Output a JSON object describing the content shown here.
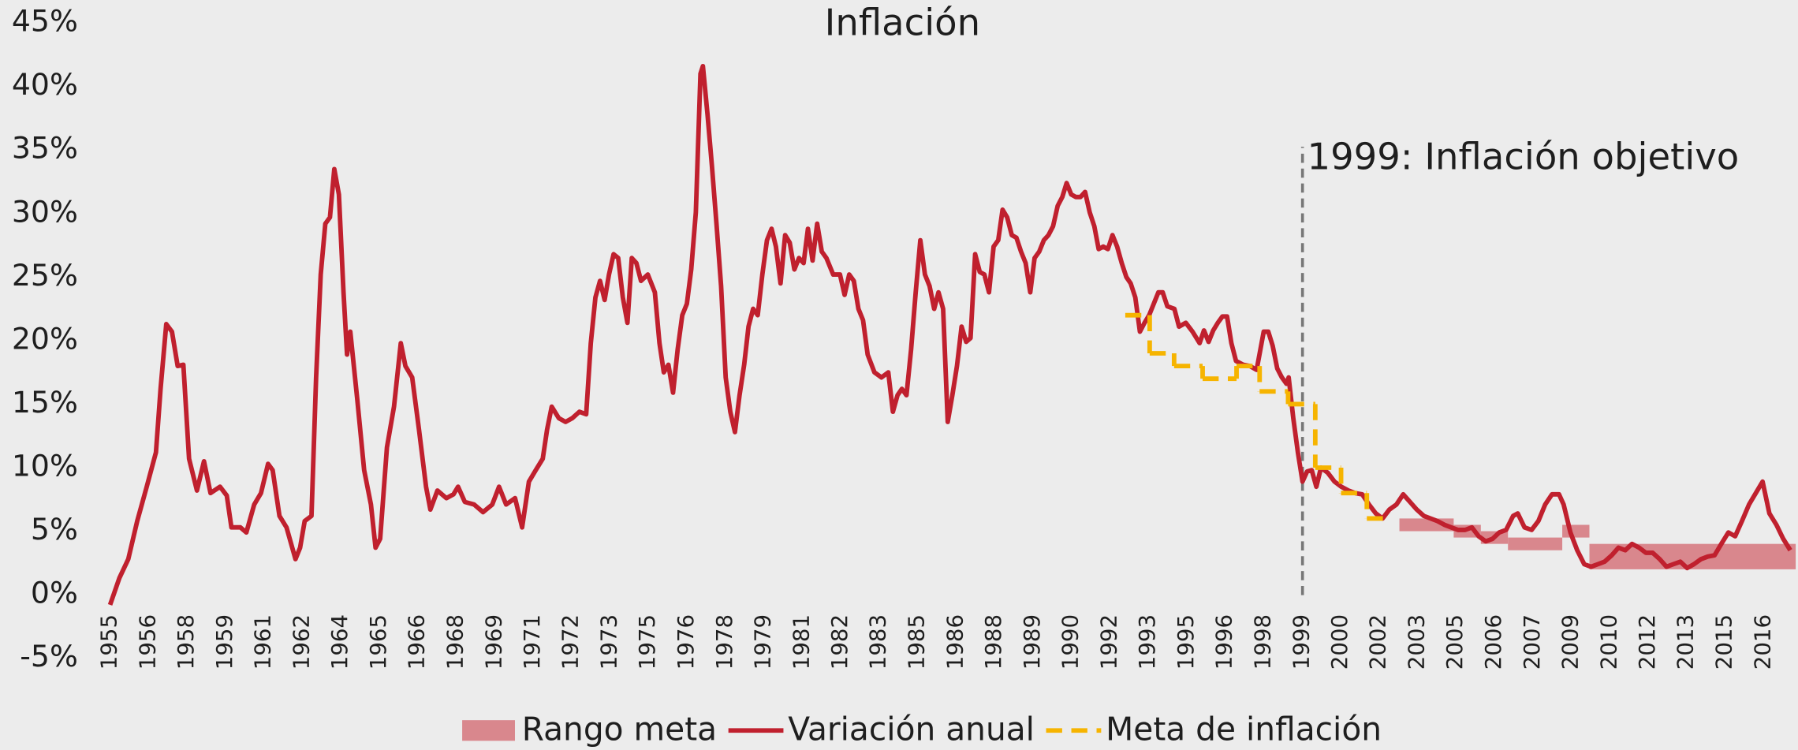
{
  "chart_data": {
    "type": "line",
    "title": "Inflación",
    "xlim": [
      1955.5,
      2017.6
    ],
    "ylim": [
      -5,
      45
    ],
    "grid": false,
    "legend": "bottom",
    "xticks": [
      {
        "value": 1955.5,
        "label": "1955"
      },
      {
        "value": 1956.92,
        "label": "1956"
      },
      {
        "value": 1958.33,
        "label": "1958"
      },
      {
        "value": 1959.75,
        "label": "1959"
      },
      {
        "value": 1961.17,
        "label": "1961"
      },
      {
        "value": 1962.58,
        "label": "1962"
      },
      {
        "value": 1964.0,
        "label": "1964"
      },
      {
        "value": 1965.42,
        "label": "1965"
      },
      {
        "value": 1966.83,
        "label": "1966"
      },
      {
        "value": 1968.25,
        "label": "1968"
      },
      {
        "value": 1969.67,
        "label": "1969"
      },
      {
        "value": 1971.08,
        "label": "1971"
      },
      {
        "value": 1972.5,
        "label": "1972"
      },
      {
        "value": 1973.92,
        "label": "1973"
      },
      {
        "value": 1975.33,
        "label": "1975"
      },
      {
        "value": 1976.75,
        "label": "1976"
      },
      {
        "value": 1978.17,
        "label": "1978"
      },
      {
        "value": 1979.58,
        "label": "1979"
      },
      {
        "value": 1981.0,
        "label": "1981"
      },
      {
        "value": 1982.42,
        "label": "1982"
      },
      {
        "value": 1983.83,
        "label": "1983"
      },
      {
        "value": 1985.25,
        "label": "1985"
      },
      {
        "value": 1986.67,
        "label": "1986"
      },
      {
        "value": 1988.08,
        "label": "1988"
      },
      {
        "value": 1989.5,
        "label": "1989"
      },
      {
        "value": 1990.92,
        "label": "1990"
      },
      {
        "value": 1992.33,
        "label": "1992"
      },
      {
        "value": 1993.75,
        "label": "1993"
      },
      {
        "value": 1995.17,
        "label": "1995"
      },
      {
        "value": 1996.58,
        "label": "1996"
      },
      {
        "value": 1998.0,
        "label": "1998"
      },
      {
        "value": 1999.42,
        "label": "1999"
      },
      {
        "value": 2000.83,
        "label": "2000"
      },
      {
        "value": 2002.25,
        "label": "2002"
      },
      {
        "value": 2003.67,
        "label": "2003"
      },
      {
        "value": 2005.08,
        "label": "2005"
      },
      {
        "value": 2006.5,
        "label": "2006"
      },
      {
        "value": 2007.92,
        "label": "2007"
      },
      {
        "value": 2009.33,
        "label": "2009"
      },
      {
        "value": 2010.75,
        "label": "2010"
      },
      {
        "value": 2012.17,
        "label": "2012"
      },
      {
        "value": 2013.58,
        "label": "2013"
      },
      {
        "value": 2015.0,
        "label": "2015"
      },
      {
        "value": 2016.42,
        "label": "2016"
      }
    ],
    "yticks": [
      {
        "value": -5,
        "label": "-5%"
      },
      {
        "value": 0,
        "label": "0%"
      },
      {
        "value": 5,
        "label": "5%"
      },
      {
        "value": 10,
        "label": "10%"
      },
      {
        "value": 15,
        "label": "15%"
      },
      {
        "value": 20,
        "label": "20%"
      },
      {
        "value": 25,
        "label": "25%"
      },
      {
        "value": 30,
        "label": "30%"
      },
      {
        "value": 35,
        "label": "35%"
      },
      {
        "value": 40,
        "label": "40%"
      },
      {
        "value": 45,
        "label": "45%"
      }
    ],
    "bands": {
      "name": "Rango meta",
      "color": "#d9878d",
      "x0": [
        2003,
        2005,
        2006,
        2007,
        2009,
        2010
      ],
      "x1": [
        2005,
        2006,
        2007,
        2009,
        2010,
        2017.6
      ],
      "low": [
        5,
        4.5,
        4,
        3.5,
        4.5,
        2
      ],
      "high": [
        6,
        5.5,
        5,
        4.5,
        5.5,
        4
      ]
    },
    "series": [
      {
        "name": "Variación anual",
        "color": "#c0202e",
        "x": [
          1955.5,
          1955.84,
          1956.17,
          1956.5,
          1956.85,
          1957.19,
          1957.36,
          1957.57,
          1957.78,
          1957.99,
          1958.2,
          1958.41,
          1958.7,
          1958.96,
          1959.2,
          1959.55,
          1959.8,
          1959.97,
          1960.3,
          1960.52,
          1960.81,
          1961.06,
          1961.32,
          1961.49,
          1961.74,
          1962.0,
          1962.33,
          1962.5,
          1962.67,
          1962.92,
          1963.09,
          1963.26,
          1963.43,
          1963.6,
          1963.76,
          1963.93,
          1964.1,
          1964.23,
          1964.35,
          1964.61,
          1964.86,
          1965.11,
          1965.28,
          1965.45,
          1965.7,
          1965.96,
          1966.21,
          1966.38,
          1966.63,
          1966.88,
          1967.14,
          1967.3,
          1967.56,
          1967.89,
          1968.15,
          1968.32,
          1968.57,
          1968.91,
          1969.24,
          1969.58,
          1969.83,
          1970.09,
          1970.42,
          1970.68,
          1970.93,
          1971.18,
          1971.44,
          1971.6,
          1971.77,
          1972.03,
          1972.28,
          1972.53,
          1972.79,
          1973.04,
          1973.21,
          1973.38,
          1973.55,
          1973.72,
          1973.88,
          1974.05,
          1974.22,
          1974.39,
          1974.56,
          1974.72,
          1974.89,
          1975.06,
          1975.31,
          1975.57,
          1975.74,
          1975.9,
          1976.07,
          1976.24,
          1976.41,
          1976.58,
          1976.75,
          1976.91,
          1977.08,
          1977.25,
          1977.34,
          1977.51,
          1977.67,
          1977.84,
          1978.01,
          1978.18,
          1978.35,
          1978.52,
          1978.69,
          1978.86,
          1979.02,
          1979.19,
          1979.36,
          1979.53,
          1979.7,
          1979.87,
          1980.03,
          1980.2,
          1980.37,
          1980.54,
          1980.71,
          1980.88,
          1981.05,
          1981.21,
          1981.38,
          1981.55,
          1981.72,
          1981.89,
          1982.14,
          1982.39,
          1982.56,
          1982.73,
          1982.9,
          1983.07,
          1983.24,
          1983.41,
          1983.66,
          1983.92,
          1984.17,
          1984.34,
          1984.51,
          1984.67,
          1984.84,
          1985.01,
          1985.18,
          1985.35,
          1985.52,
          1985.69,
          1985.86,
          1986.02,
          1986.19,
          1986.36,
          1986.53,
          1986.7,
          1986.87,
          1987.04,
          1987.2,
          1987.37,
          1987.54,
          1987.71,
          1987.88,
          1988.05,
          1988.22,
          1988.38,
          1988.55,
          1988.72,
          1988.89,
          1989.06,
          1989.23,
          1989.4,
          1989.56,
          1989.73,
          1989.9,
          1990.07,
          1990.24,
          1990.41,
          1990.58,
          1990.74,
          1990.91,
          1991.08,
          1991.25,
          1991.42,
          1991.59,
          1991.76,
          1991.92,
          1992.09,
          1992.26,
          1992.43,
          1992.6,
          1992.77,
          1992.94,
          1993.1,
          1993.27,
          1993.44,
          1993.61,
          1993.78,
          1993.95,
          1994.12,
          1994.28,
          1994.45,
          1994.71,
          1994.88,
          1995.13,
          1995.38,
          1995.64,
          1995.8,
          1995.97,
          1996.14,
          1996.31,
          1996.48,
          1996.65,
          1996.81,
          1996.98,
          1997.24,
          1997.49,
          1997.74,
          1998.0,
          1998.17,
          1998.33,
          1998.5,
          1998.67,
          1998.84,
          1998.92,
          1999.09,
          1999.26,
          1999.43,
          1999.6,
          1999.77,
          1999.94,
          2000.11,
          2000.36,
          2000.61,
          2000.86,
          2001.12,
          2001.37,
          2001.63,
          2001.88,
          2002.13,
          2002.38,
          2002.63,
          2002.89,
          2003.14,
          2003.39,
          2003.64,
          2003.9,
          2004.15,
          2004.4,
          2004.66,
          2004.91,
          2005.16,
          2005.42,
          2005.67,
          2005.92,
          2006.18,
          2006.43,
          2006.68,
          2006.93,
          2007.19,
          2007.36,
          2007.61,
          2007.87,
          2008.12,
          2008.37,
          2008.62,
          2008.88,
          2009.05,
          2009.3,
          2009.55,
          2009.81,
          2010.06,
          2010.31,
          2010.56,
          2010.82,
          2011.07,
          2011.32,
          2011.57,
          2011.83,
          2012.08,
          2012.33,
          2012.59,
          2012.84,
          2013.09,
          2013.35,
          2013.6,
          2013.85,
          2014.11,
          2014.36,
          2014.61,
          2014.86,
          2015.12,
          2015.37,
          2015.62,
          2015.88,
          2016.13,
          2016.38,
          2016.63,
          2016.89,
          2017.14,
          2017.4
        ],
        "values": [
          -0.8,
          1.3,
          2.8,
          5.8,
          8.5,
          11.2,
          16.2,
          21.3,
          20.7,
          18,
          18.1,
          10.7,
          8.2,
          10.5,
          8,
          8.5,
          7.8,
          5.3,
          5.3,
          4.9,
          7.1,
          8,
          10.3,
          9.8,
          6.2,
          5.3,
          2.8,
          3.7,
          5.8,
          6.2,
          17.1,
          25.2,
          29.2,
          29.7,
          33.5,
          31.5,
          23.8,
          18.9,
          20.7,
          15.3,
          9.8,
          7.1,
          3.7,
          4.4,
          11.6,
          14.8,
          19.8,
          18,
          17.1,
          13,
          8.5,
          6.7,
          8.2,
          7.6,
          7.9,
          8.5,
          7.3,
          7.1,
          6.5,
          7.1,
          8.5,
          7.1,
          7.6,
          5.3,
          8.9,
          9.8,
          10.7,
          13,
          14.8,
          13.9,
          13.6,
          13.9,
          14.4,
          14.2,
          19.8,
          23.4,
          24.7,
          23.2,
          25.2,
          26.8,
          26.5,
          23.4,
          21.4,
          26.5,
          26.1,
          24.7,
          25.2,
          23.8,
          19.8,
          17.5,
          18.1,
          15.9,
          19.3,
          22,
          22.9,
          25.6,
          30.1,
          41,
          41.6,
          37.8,
          33.8,
          29.2,
          24.3,
          17.1,
          14.4,
          12.8,
          15.7,
          18.1,
          21.1,
          22.5,
          22,
          25.2,
          27.9,
          28.8,
          27.4,
          24.5,
          28.3,
          27.7,
          25.6,
          26.5,
          26.1,
          28.8,
          26.3,
          29.2,
          27,
          26.5,
          25.2,
          25.2,
          23.6,
          25.2,
          24.7,
          22.5,
          21.6,
          18.9,
          17.5,
          17.1,
          17.5,
          14.4,
          15.7,
          16.2,
          15.7,
          19.3,
          23.8,
          27.9,
          25.2,
          24.3,
          22.5,
          23.8,
          22.5,
          13.6,
          15.7,
          18,
          21.1,
          19.9,
          20.2,
          26.8,
          25.4,
          25.2,
          23.8,
          27.4,
          27.9,
          30.3,
          29.7,
          28.3,
          28.1,
          27,
          26.1,
          23.8,
          26.5,
          27,
          27.9,
          28.3,
          29,
          30.6,
          31.3,
          32.4,
          31.5,
          31.3,
          31.3,
          31.7,
          30.1,
          29,
          27.2,
          27.4,
          27.2,
          28.3,
          27.4,
          26.1,
          25,
          24.5,
          23.4,
          20.7,
          21.4,
          22,
          22.9,
          23.8,
          23.8,
          22.7,
          22.5,
          21.1,
          21.4,
          20.7,
          19.8,
          20.8,
          19.9,
          20.8,
          21.4,
          21.9,
          21.9,
          19.8,
          18.4,
          18.1,
          18,
          17.7,
          20.7,
          20.7,
          19.6,
          17.8,
          17.1,
          16.6,
          17.1,
          13.9,
          11.2,
          8.9,
          9.7,
          9.8,
          8.5,
          10,
          9.6,
          8.9,
          8.5,
          8.2,
          8,
          7.9,
          7.1,
          6.4,
          6,
          6.7,
          7.1,
          7.9,
          7.3,
          6.7,
          6.2,
          6,
          5.8,
          5.5,
          5.3,
          5.1,
          5.1,
          5.3,
          4.6,
          4.2,
          4.4,
          4.9,
          5.1,
          6.2,
          6.4,
          5.3,
          5.1,
          5.8,
          7.1,
          7.9,
          7.9,
          7.1,
          4.9,
          3.5,
          2.4,
          2.2,
          2.4,
          2.6,
          3.1,
          3.7,
          3.5,
          4,
          3.7,
          3.3,
          3.3,
          2.8,
          2.2,
          2.4,
          2.6,
          2.1,
          2.4,
          2.8,
          3,
          3.1,
          4,
          4.9,
          4.6,
          5.8,
          7.1,
          8,
          8.9,
          6.4,
          5.5,
          4.4,
          3.5
        ]
      },
      {
        "name": "Meta de inflación",
        "color": "#f6b400",
        "dashed": true,
        "step": true,
        "edges": [
          1992.9,
          1993.8,
          1994.7,
          1995.75,
          1997.0,
          1997.85,
          1998.9,
          1999.9,
          2000.85,
          2001.8,
          2002.7
        ],
        "values": [
          22,
          19,
          18,
          17,
          18,
          16,
          15,
          10,
          8,
          6
        ]
      }
    ],
    "annotation": {
      "text": "1999: Inflación objetivo",
      "x": 1999.43
    }
  }
}
